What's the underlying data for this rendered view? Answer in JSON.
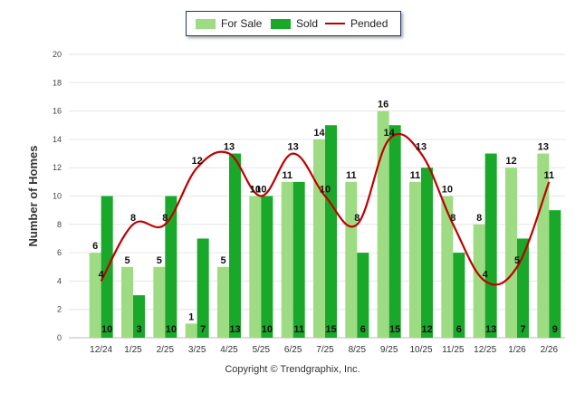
{
  "chart_data": {
    "type": "bar",
    "ylabel": "Number of Homes",
    "xlabel": "",
    "ylim": [
      0,
      20
    ],
    "yticks": [
      0,
      2,
      4,
      6,
      8,
      10,
      12,
      14,
      16,
      18,
      20
    ],
    "grid": true,
    "legend_position": "top-center",
    "categories": [
      "12/24",
      "1/25",
      "2/25",
      "3/25",
      "4/25",
      "5/25",
      "6/25",
      "7/25",
      "8/25",
      "9/25",
      "10/25",
      "11/25",
      "12/25",
      "1/26",
      "2/26"
    ],
    "series": [
      {
        "name": "For Sale",
        "kind": "bar",
        "color": "#9edc84",
        "values": [
          6,
          5,
          5,
          1,
          5,
          10,
          11,
          14,
          11,
          16,
          11,
          10,
          8,
          12,
          13
        ]
      },
      {
        "name": "Sold",
        "kind": "bar",
        "color": "#1aa82a",
        "values": [
          10,
          3,
          10,
          7,
          13,
          10,
          11,
          15,
          6,
          15,
          12,
          6,
          13,
          7,
          9
        ]
      },
      {
        "name": "Pended",
        "kind": "line",
        "color": "#c00000",
        "values": [
          4,
          8,
          8,
          12,
          13,
          10,
          13,
          10,
          8,
          14,
          13,
          8,
          4,
          5,
          11
        ]
      }
    ]
  },
  "legend": {
    "for_sale": "For Sale",
    "sold": "Sold",
    "pended": "Pended"
  },
  "copyright": "Copyright © Trendgraphix, Inc."
}
